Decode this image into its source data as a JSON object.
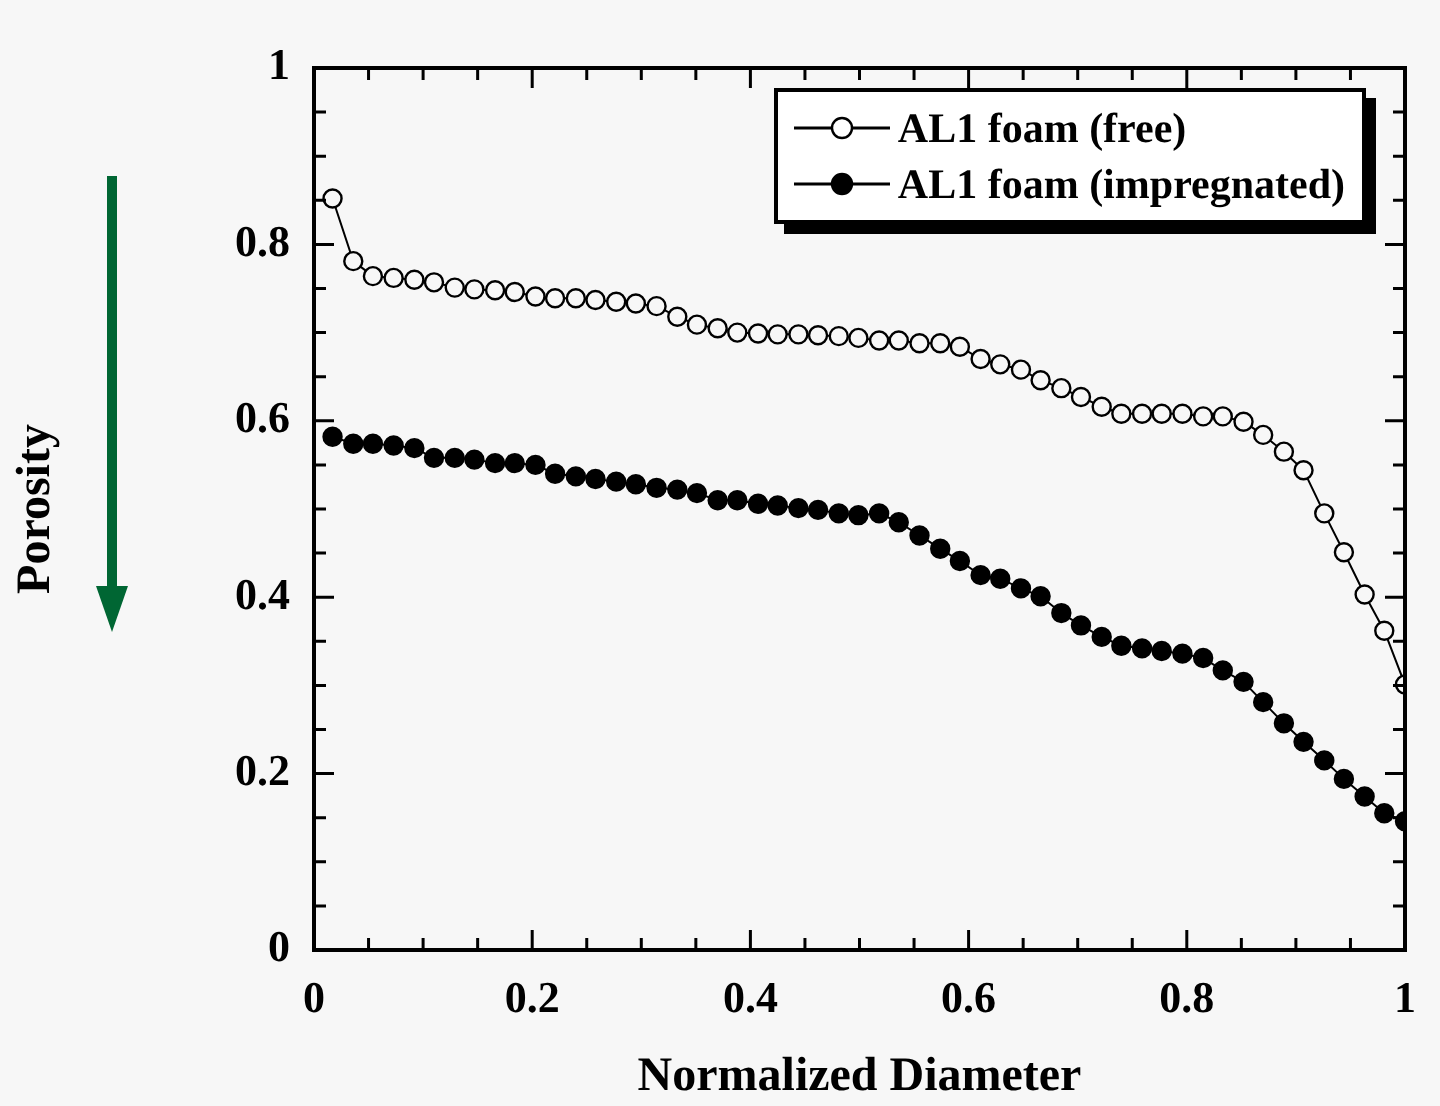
{
  "chart_data": {
    "type": "line",
    "xlabel": "Normalized Diameter",
    "ylabel": "Porosity",
    "x": [
      0.017,
      0.036,
      0.054,
      0.073,
      0.092,
      0.11,
      0.129,
      0.147,
      0.166,
      0.184,
      0.203,
      0.221,
      0.24,
      0.258,
      0.277,
      0.295,
      0.314,
      0.333,
      0.351,
      0.37,
      0.388,
      0.407,
      0.425,
      0.444,
      0.462,
      0.481,
      0.499,
      0.518,
      0.536,
      0.555,
      0.574,
      0.592,
      0.611,
      0.629,
      0.648,
      0.666,
      0.685,
      0.703,
      0.722,
      0.74,
      0.759,
      0.777,
      0.796,
      0.815,
      0.833,
      0.852,
      0.87,
      0.889,
      0.907,
      0.926,
      0.944,
      0.963,
      0.981,
      1.0
    ],
    "series": [
      {
        "name": "AL1 foam (free)",
        "color": "#000000",
        "values": [
          0.852,
          0.781,
          0.764,
          0.762,
          0.76,
          0.757,
          0.751,
          0.749,
          0.748,
          0.746,
          0.741,
          0.739,
          0.739,
          0.737,
          0.735,
          0.733,
          0.73,
          0.718,
          0.709,
          0.705,
          0.7,
          0.699,
          0.698,
          0.698,
          0.697,
          0.696,
          0.694,
          0.691,
          0.691,
          0.688,
          0.688,
          0.684,
          0.67,
          0.664,
          0.658,
          0.646,
          0.637,
          0.627,
          0.616,
          0.608,
          0.608,
          0.608,
          0.608,
          0.605,
          0.605,
          0.599,
          0.584,
          0.565,
          0.544,
          0.495,
          0.451,
          0.403,
          0.362,
          0.301
        ]
      },
      {
        "name": "AL1 foam (impregnated)",
        "color": "#000000",
        "values": [
          0.582,
          0.574,
          0.574,
          0.572,
          0.569,
          0.558,
          0.558,
          0.556,
          0.552,
          0.552,
          0.55,
          0.54,
          0.537,
          0.534,
          0.531,
          0.528,
          0.524,
          0.522,
          0.518,
          0.51,
          0.51,
          0.506,
          0.504,
          0.501,
          0.499,
          0.495,
          0.493,
          0.495,
          0.485,
          0.47,
          0.455,
          0.441,
          0.425,
          0.421,
          0.41,
          0.401,
          0.382,
          0.368,
          0.355,
          0.345,
          0.342,
          0.339,
          0.336,
          0.331,
          0.317,
          0.304,
          0.281,
          0.257,
          0.236,
          0.215,
          0.194,
          0.174,
          0.155,
          0.146
        ]
      }
    ],
    "xlim": [
      0,
      1
    ],
    "ylim": [
      0,
      1
    ],
    "xticks": [
      0,
      {
        "value": 0.05,
        "label": null
      },
      {
        "value": 0.1,
        "label": null
      },
      {
        "value": 0.15,
        "label": null
      },
      0.2,
      {
        "value": 0.25,
        "label": null
      },
      {
        "value": 0.3,
        "label": null
      },
      {
        "value": 0.35,
        "label": null
      },
      0.4,
      {
        "value": 0.45,
        "label": null
      },
      {
        "value": 0.5,
        "label": null
      },
      {
        "value": 0.55,
        "label": null
      },
      0.6,
      {
        "value": 0.65,
        "label": null
      },
      {
        "value": 0.7,
        "label": null
      },
      {
        "value": 0.75,
        "label": null
      },
      0.8,
      {
        "value": 0.85,
        "label": null
      },
      {
        "value": 0.9,
        "label": null
      },
      {
        "value": 0.95,
        "label": null
      },
      1
    ],
    "yticks": [
      0,
      {
        "value": 0.05,
        "label": null
      },
      {
        "value": 0.1,
        "label": null
      },
      {
        "value": 0.15,
        "label": null
      },
      0.2,
      {
        "value": 0.25,
        "label": null
      },
      {
        "value": 0.3,
        "label": null
      },
      {
        "value": 0.35,
        "label": null
      },
      0.4,
      {
        "value": 0.45,
        "label": null
      },
      {
        "value": 0.5,
        "label": null
      },
      {
        "value": 0.55,
        "label": null
      },
      0.6,
      {
        "value": 0.65,
        "label": null
      },
      {
        "value": 0.7,
        "label": null
      },
      {
        "value": 0.75,
        "label": null
      },
      0.8,
      {
        "value": 0.85,
        "label": null
      },
      {
        "value": 0.9,
        "label": null
      },
      {
        "value": 0.95,
        "label": null
      },
      1
    ],
    "grid": false,
    "legend": "top right",
    "marker": "circle",
    "line_style": "solid"
  }
}
